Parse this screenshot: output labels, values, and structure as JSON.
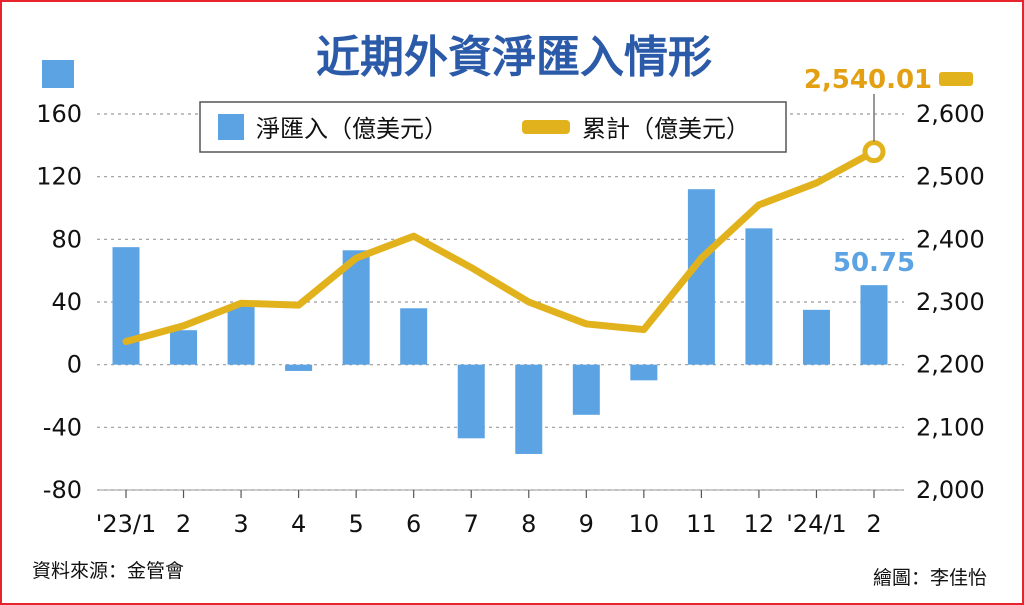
{
  "chart_data": {
    "type": "bar+line",
    "title": "近期外資淨匯入情形",
    "categories": [
      "'23/1",
      "2",
      "3",
      "4",
      "5",
      "6",
      "7",
      "8",
      "9",
      "10",
      "11",
      "12",
      "'24/1",
      "2"
    ],
    "series": [
      {
        "name": "淨匯入（億美元）",
        "type": "bar",
        "axis": "left",
        "color": "#5ba3e3",
        "values": [
          75,
          22,
          38,
          -4,
          73,
          36,
          -47,
          -57,
          -32,
          -10,
          112,
          87,
          35,
          50.75
        ]
      },
      {
        "name": "累計（億美元）",
        "type": "line",
        "axis": "right",
        "color": "#e2b21d",
        "values": [
          2237,
          2262,
          2298,
          2295,
          2370,
          2405,
          2355,
          2300,
          2265,
          2256,
          2370,
          2455,
          2490,
          2540.01
        ]
      }
    ],
    "left_axis": {
      "ylim": [
        -80,
        160
      ],
      "ticks": [
        "160",
        "120",
        "80",
        "40",
        "0",
        "-40",
        "-80"
      ]
    },
    "right_axis": {
      "ylim": [
        2000,
        2600
      ],
      "ticks": [
        "2,600",
        "2,500",
        "2,400",
        "2,300",
        "2,200",
        "2,100",
        "2,000"
      ]
    },
    "annotations": {
      "last_bar_label": "50.75",
      "last_line_label": "2,540.01"
    },
    "grid": true,
    "legend_position": "top"
  },
  "source": "資料來源：金管會",
  "credit": "繪圖：李佳怡"
}
